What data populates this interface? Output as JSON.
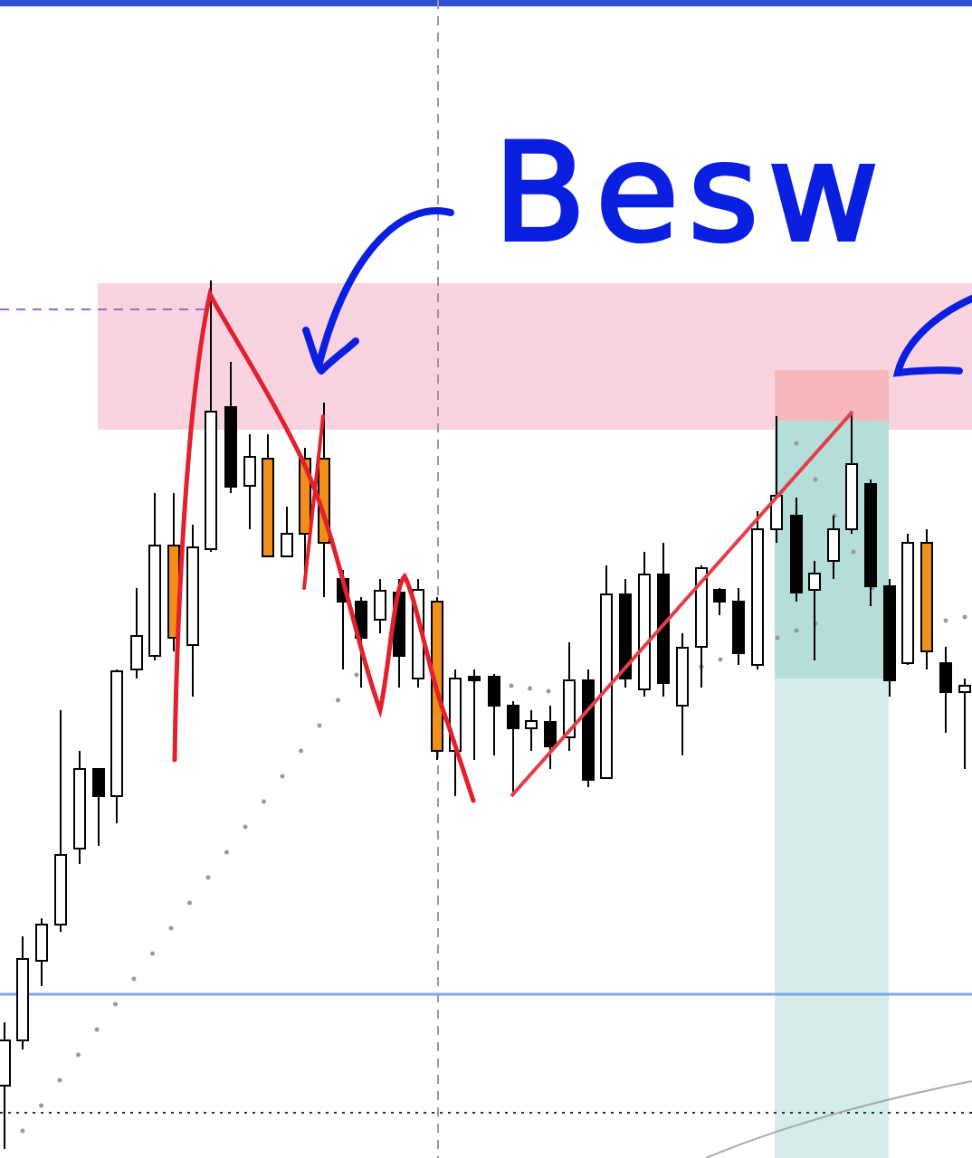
{
  "annotation": {
    "text": "Besw"
  }
}
